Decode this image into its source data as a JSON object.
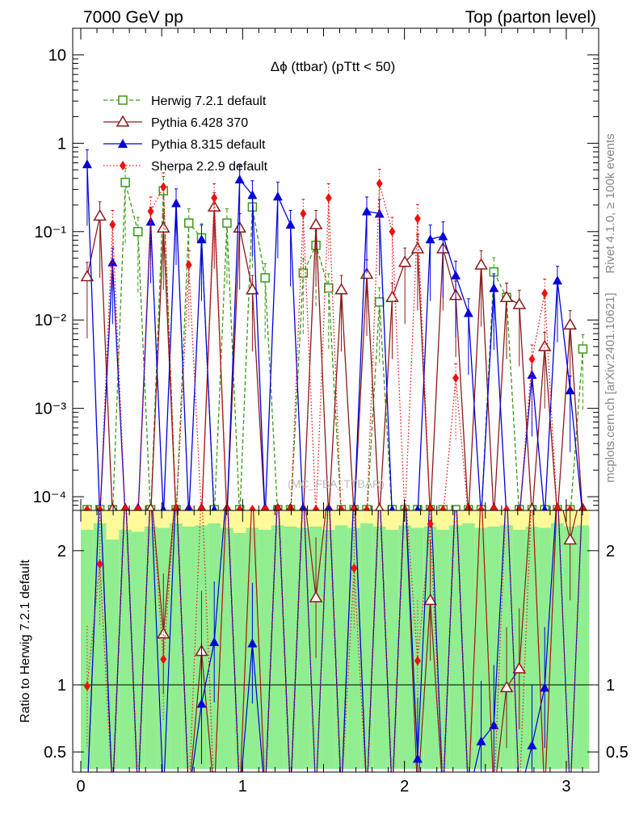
{
  "header": {
    "left": "7000 GeV pp",
    "right": "Top (parton level)"
  },
  "side_text": {
    "rivet": "Rivet 4.1.0, ≥ 100k events",
    "mcplots": "mcplots.cern.ch [arXiv:2401.10621]"
  },
  "watermark": "(MC_FBA_TTBAR)",
  "colors": {
    "herwig": "#3a9a16",
    "pythia6": "#8b1a1a",
    "pythia8": "#0000dd",
    "sherpa": "#ee1111",
    "band_green": "#90ee90",
    "band_yellow": "#fffa99"
  },
  "chart_data": [
    {
      "type": "line",
      "title": "Δϕ (ttbar) (pTtt < 50)",
      "xlabel": "",
      "ylabel": "",
      "yscale": "log",
      "xlim": [
        -0.05,
        3.2
      ],
      "ylim": [
        7e-05,
        20
      ],
      "yticks": [
        {
          "value": 10,
          "label": "10"
        },
        {
          "value": 1,
          "label": "1"
        },
        {
          "value": 0.1,
          "label": "10⁻¹"
        },
        {
          "value": 0.01,
          "label": "10⁻²"
        },
        {
          "value": 0.001,
          "label": "10⁻³"
        },
        {
          "value": 0.0001,
          "label": "10⁻⁴"
        }
      ],
      "legend_position": "top-left",
      "series": [
        {
          "name": "Herwig 7.2.1 default",
          "key": "herwig",
          "marker": "open-square",
          "dash": "dashed",
          "points": [
            [
              0.27,
              0.36
            ],
            [
              0.35,
              0.1
            ],
            [
              0.51,
              0.29
            ],
            [
              0.67,
              0.125
            ],
            [
              0.75,
              0.085
            ],
            [
              0.9,
              0.125
            ],
            [
              1.06,
              0.19
            ],
            [
              1.14,
              0.03
            ],
            [
              1.37,
              0.034
            ],
            [
              1.45,
              0.07
            ],
            [
              1.53,
              0.023
            ],
            [
              1.84,
              0.016
            ],
            [
              2.55,
              0.035
            ],
            [
              2.63,
              0.018
            ],
            [
              3.1,
              0.0047
            ]
          ]
        },
        {
          "name": "Pythia 6.428 370",
          "key": "pythia6",
          "marker": "open-triangle",
          "dash": "solid",
          "points": [
            [
              0.04,
              0.031
            ],
            [
              0.12,
              0.15
            ],
            [
              0.51,
              0.11
            ],
            [
              0.82,
              0.19
            ],
            [
              0.98,
              0.11
            ],
            [
              1.06,
              0.022
            ],
            [
              1.45,
              0.12
            ],
            [
              1.61,
              0.022
            ],
            [
              1.76,
              0.033
            ],
            [
              1.92,
              0.018
            ],
            [
              2.0,
              0.045
            ],
            [
              2.08,
              0.064
            ],
            [
              2.24,
              0.064
            ],
            [
              2.31,
              0.019
            ],
            [
              2.47,
              0.042
            ],
            [
              2.63,
              0.018
            ],
            [
              2.71,
              0.015
            ],
            [
              2.86,
              0.005
            ],
            [
              3.02,
              0.0088
            ]
          ]
        },
        {
          "name": "Pythia 8.315 default",
          "key": "pythia8",
          "marker": "filled-triangle",
          "dash": "solid",
          "points": [
            [
              0.04,
              0.58
            ],
            [
              0.2,
              0.045
            ],
            [
              0.43,
              0.13
            ],
            [
              0.59,
              0.21
            ],
            [
              0.75,
              0.082
            ],
            [
              0.98,
              0.39
            ],
            [
              1.06,
              0.26
            ],
            [
              1.22,
              0.25
            ],
            [
              1.29,
              0.12
            ],
            [
              1.76,
              0.17
            ],
            [
              1.84,
              0.16
            ],
            [
              2.16,
              0.082
            ],
            [
              2.24,
              0.089
            ],
            [
              2.31,
              0.032
            ],
            [
              2.39,
              0.012
            ],
            [
              2.55,
              0.023
            ],
            [
              2.78,
              0.0024
            ],
            [
              2.94,
              0.028
            ],
            [
              3.02,
              0.0016
            ]
          ]
        },
        {
          "name": "Sherpa 2.2.9 default",
          "key": "sherpa",
          "marker": "diamond",
          "dash": "dotted",
          "points": [
            [
              0.2,
              0.12
            ],
            [
              0.43,
              0.17
            ],
            [
              0.51,
              0.32
            ],
            [
              0.67,
              0.042
            ],
            [
              0.82,
              0.24
            ],
            [
              1.37,
              0.16
            ],
            [
              1.53,
              0.24
            ],
            [
              1.84,
              0.35
            ],
            [
              1.92,
              0.1
            ],
            [
              2.08,
              0.14
            ],
            [
              2.31,
              0.0022
            ],
            [
              2.78,
              0.0036
            ],
            [
              2.86,
              0.02
            ]
          ]
        }
      ]
    },
    {
      "type": "line",
      "title": "",
      "xlabel": "",
      "ylabel": "Ratio to Herwig 7.2.1 default",
      "xlim": [
        -0.05,
        3.2
      ],
      "ylim": [
        0.35,
        2.3
      ],
      "xticks": [
        {
          "value": 0,
          "label": "0"
        },
        {
          "value": 1,
          "label": "1"
        },
        {
          "value": 2,
          "label": "2"
        },
        {
          "value": 3,
          "label": "3"
        }
      ],
      "yticks": [
        {
          "value": 0.5,
          "label": "0.5"
        },
        {
          "value": 1,
          "label": "1"
        },
        {
          "value": 2,
          "label": "2"
        }
      ],
      "series": [
        {
          "name": "Pythia 6.428 370",
          "key": "pythia6",
          "points": [
            [
              0.51,
              1.38
            ],
            [
              0.75,
              1.25
            ],
            [
              1.45,
              1.65
            ],
            [
              2.16,
              1.63
            ],
            [
              2.63,
              0.98
            ],
            [
              2.71,
              1.12
            ],
            [
              3.02,
              2.08
            ]
          ]
        },
        {
          "name": "Pythia 8.315 default",
          "key": "pythia8",
          "points": [
            [
              0.75,
              0.86
            ],
            [
              0.82,
              1.32
            ],
            [
              1.06,
              1.31
            ],
            [
              2.08,
              0.45
            ],
            [
              2.47,
              0.58
            ],
            [
              2.55,
              0.7
            ],
            [
              2.78,
              0.55
            ],
            [
              2.86,
              0.98
            ]
          ]
        },
        {
          "name": "Sherpa 2.2.9 default",
          "key": "sherpa",
          "points": [
            [
              0.04,
              0.99
            ],
            [
              0.12,
              1.9
            ],
            [
              0.51,
              1.19
            ],
            [
              1.67,
              1.87
            ],
            [
              2.08,
              1.18
            ],
            [
              2.16,
              2.2
            ]
          ]
        }
      ]
    }
  ]
}
